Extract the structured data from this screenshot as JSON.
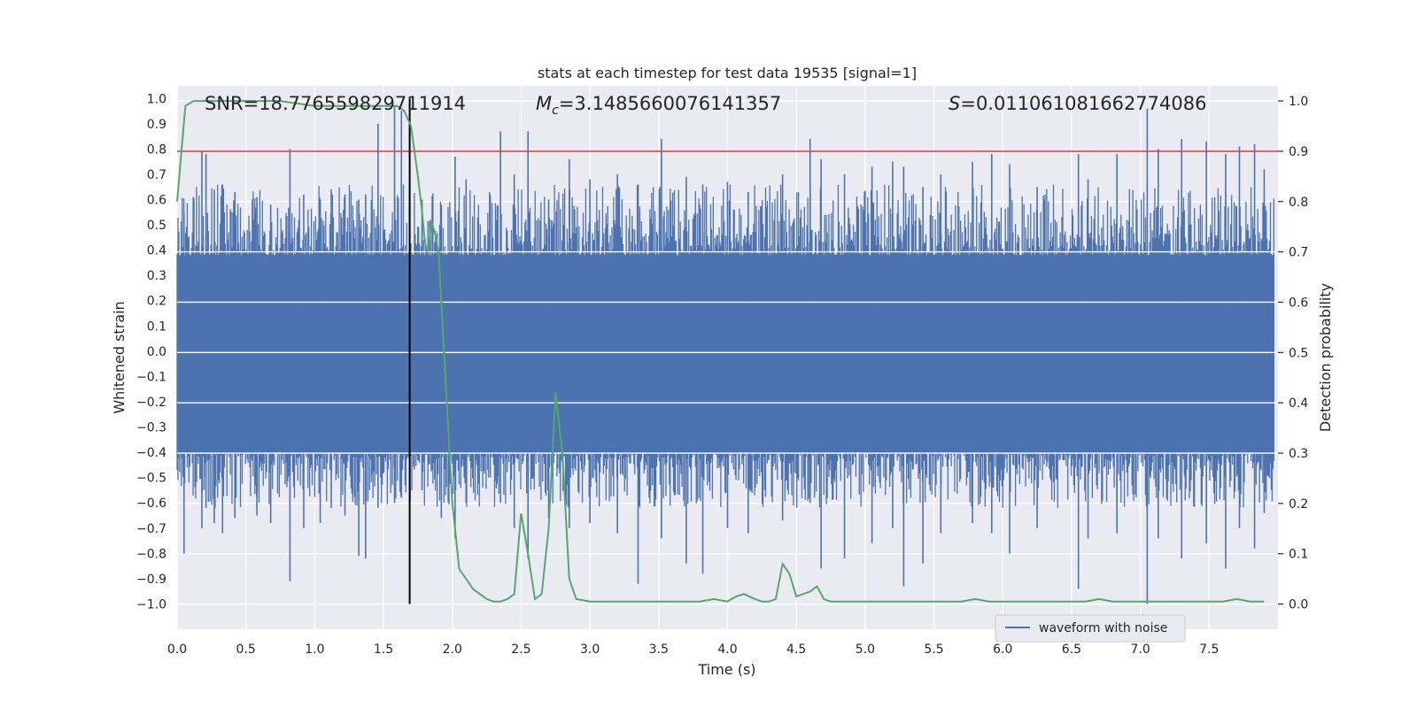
{
  "chart_data": {
    "type": "line",
    "title": "stats at each timestep for test data 19535 [signal=1]",
    "xlabel": "Time (s)",
    "ylabel_left": "Whitened strain",
    "ylabel_right": "Detection probability",
    "xlim": [
      0.0,
      8.0
    ],
    "ylim_left": [
      -1.1,
      1.05
    ],
    "ylim_right": [
      -0.05,
      1.03
    ],
    "xticks": [
      "0.0",
      "0.5",
      "1.0",
      "1.5",
      "2.0",
      "2.5",
      "3.0",
      "3.5",
      "4.0",
      "4.5",
      "5.0",
      "5.5",
      "6.0",
      "6.5",
      "7.0",
      "7.5"
    ],
    "yticks_left": [
      "1.0",
      "0.9",
      "0.8",
      "0.7",
      "0.6",
      "0.5",
      "0.4",
      "0.3",
      "0.2",
      "0.1",
      "0.0",
      "-0.1",
      "-0.2",
      "-0.3",
      "-0.4",
      "-0.5",
      "-0.6",
      "-0.7",
      "-0.8",
      "-0.9",
      "-1.0"
    ],
    "yticks_right": [
      "1.0",
      "0.9",
      "0.8",
      "0.7",
      "0.6",
      "0.5",
      "0.4",
      "0.3",
      "0.2",
      "0.1",
      "0.0"
    ],
    "grid": true,
    "legend": {
      "placement": "lower-right",
      "entries": [
        "waveform with noise"
      ]
    },
    "annotations": {
      "snr": "SNR=18.776559829711914",
      "mc_symbol": "M",
      "mc_sub": "c",
      "mc_value": "=3.1485660076141357",
      "s_symbol": "S",
      "s_value": "=0.011061081662774086"
    },
    "threshold_y_right": 0.9,
    "event_time": 1.69,
    "waveform": {
      "name": "waveform with noise",
      "core_band": [
        -0.4,
        0.38
      ],
      "spikes": [
        [
          0.05,
          0.55,
          -0.8
        ],
        [
          0.18,
          0.79,
          -0.7
        ],
        [
          0.21,
          0.78,
          -0.62
        ],
        [
          0.27,
          0.64,
          -0.68
        ],
        [
          0.33,
          0.66,
          -0.72
        ],
        [
          0.42,
          0.63,
          -0.66
        ],
        [
          0.58,
          0.61,
          -0.65
        ],
        [
          0.68,
          0.58,
          -0.68
        ],
        [
          0.82,
          0.8,
          -0.91
        ],
        [
          0.92,
          0.62,
          -0.7
        ],
        [
          1.04,
          0.6,
          -0.68
        ],
        [
          1.12,
          0.64,
          -0.62
        ],
        [
          1.22,
          0.62,
          -0.65
        ],
        [
          1.32,
          0.6,
          -0.81
        ],
        [
          1.37,
          0.62,
          -0.82
        ],
        [
          1.46,
          0.9,
          -0.62
        ],
        [
          1.58,
          0.97,
          -0.6
        ],
        [
          1.63,
          0.95,
          -0.58
        ],
        [
          1.78,
          0.6,
          -0.55
        ],
        [
          1.92,
          0.58,
          -0.66
        ],
        [
          2.02,
          0.77,
          -0.74
        ],
        [
          2.1,
          0.68,
          -0.6
        ],
        [
          2.35,
          0.87,
          -0.6
        ],
        [
          2.45,
          0.7,
          -0.7
        ],
        [
          2.55,
          0.87,
          -0.82
        ],
        [
          2.7,
          0.6,
          -0.66
        ],
        [
          2.85,
          0.76,
          -0.7
        ],
        [
          3.0,
          0.68,
          -0.68
        ],
        [
          3.2,
          0.7,
          -0.72
        ],
        [
          3.35,
          0.66,
          -0.92
        ],
        [
          3.52,
          0.84,
          -0.74
        ],
        [
          3.7,
          0.69,
          -0.84
        ],
        [
          3.82,
          0.66,
          -0.88
        ],
        [
          4.0,
          0.67,
          -0.7
        ],
        [
          4.15,
          0.63,
          -0.72
        ],
        [
          4.4,
          0.7,
          -0.67
        ],
        [
          4.6,
          0.84,
          -0.6
        ],
        [
          4.68,
          0.76,
          -0.86
        ],
        [
          4.85,
          0.7,
          -0.82
        ],
        [
          5.05,
          0.73,
          -0.76
        ],
        [
          5.2,
          0.75,
          -0.7
        ],
        [
          5.28,
          0.73,
          -0.93
        ],
        [
          5.42,
          0.65,
          -0.84
        ],
        [
          5.55,
          0.7,
          -0.72
        ],
        [
          5.78,
          0.75,
          -0.68
        ],
        [
          5.92,
          0.78,
          -0.72
        ],
        [
          6.05,
          0.74,
          -0.8
        ],
        [
          6.25,
          0.65,
          -0.7
        ],
        [
          6.55,
          0.78,
          -0.94
        ],
        [
          6.62,
          0.68,
          -0.74
        ],
        [
          6.83,
          0.78,
          -0.72
        ],
        [
          7.05,
          0.96,
          -1.0
        ],
        [
          7.13,
          0.8,
          -0.74
        ],
        [
          7.3,
          0.84,
          -0.82
        ],
        [
          7.48,
          0.83,
          -0.76
        ],
        [
          7.62,
          0.78,
          -0.86
        ],
        [
          7.72,
          0.81,
          -0.7
        ],
        [
          7.83,
          0.82,
          -0.78
        ],
        [
          7.9,
          0.72,
          -0.64
        ]
      ]
    },
    "probability": {
      "x": [
        0.0,
        0.06,
        0.12,
        0.25,
        0.5,
        0.75,
        1.0,
        1.25,
        1.5,
        1.6,
        1.65,
        1.7,
        1.75,
        1.78,
        1.8,
        1.82,
        1.85,
        1.88,
        1.9,
        1.95,
        2.0,
        2.05,
        2.1,
        2.15,
        2.2,
        2.25,
        2.3,
        2.35,
        2.4,
        2.45,
        2.5,
        2.55,
        2.6,
        2.65,
        2.7,
        2.75,
        2.8,
        2.85,
        2.9,
        3.0,
        3.2,
        3.4,
        3.6,
        3.8,
        3.9,
        4.0,
        4.06,
        4.12,
        4.2,
        4.25,
        4.3,
        4.35,
        4.4,
        4.45,
        4.5,
        4.55,
        4.6,
        4.65,
        4.7,
        4.75,
        4.8,
        4.9,
        5.0,
        5.2,
        5.4,
        5.5,
        5.6,
        5.7,
        5.8,
        5.9,
        6.0,
        6.2,
        6.4,
        6.6,
        6.7,
        6.8,
        7.0,
        7.2,
        7.4,
        7.6,
        7.7,
        7.8,
        7.9
      ],
      "y": [
        0.8,
        0.99,
        1.0,
        1.0,
        1.0,
        1.0,
        0.99,
        0.99,
        0.99,
        0.99,
        0.98,
        0.95,
        0.85,
        0.78,
        0.72,
        0.7,
        0.76,
        0.73,
        0.7,
        0.45,
        0.2,
        0.07,
        0.05,
        0.03,
        0.02,
        0.01,
        0.005,
        0.005,
        0.01,
        0.02,
        0.18,
        0.1,
        0.01,
        0.02,
        0.15,
        0.42,
        0.3,
        0.05,
        0.01,
        0.005,
        0.005,
        0.005,
        0.005,
        0.005,
        0.01,
        0.005,
        0.015,
        0.02,
        0.01,
        0.005,
        0.005,
        0.01,
        0.08,
        0.06,
        0.015,
        0.02,
        0.025,
        0.035,
        0.01,
        0.005,
        0.005,
        0.005,
        0.005,
        0.005,
        0.005,
        0.005,
        0.005,
        0.005,
        0.01,
        0.005,
        0.005,
        0.005,
        0.005,
        0.005,
        0.01,
        0.005,
        0.005,
        0.005,
        0.005,
        0.005,
        0.01,
        0.005,
        0.005
      ]
    },
    "colors": {
      "background": "#eaeaf2",
      "grid": "#ffffff",
      "waveform": "#4c72b0",
      "probability": "#55a868",
      "threshold": "#c44e52",
      "event_line": "#000000",
      "text": "#262626"
    }
  }
}
